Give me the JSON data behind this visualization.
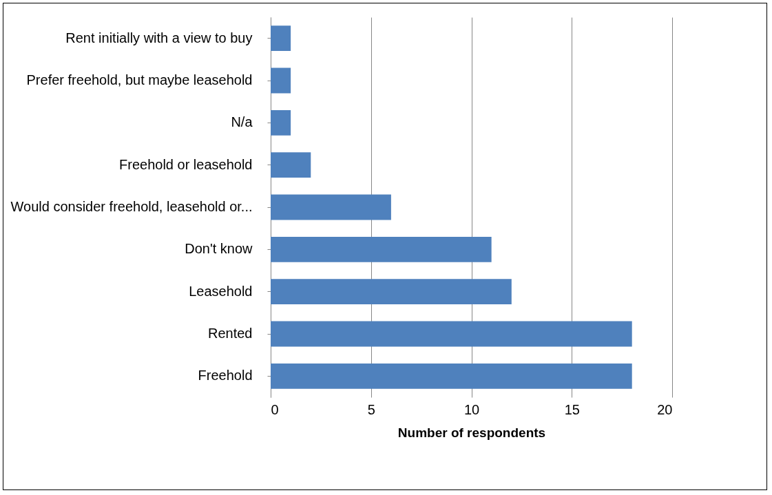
{
  "chart_data": {
    "type": "bar",
    "orientation": "horizontal",
    "categories": [
      "Rent initially with a view to buy",
      "Prefer freehold, but maybe leasehold",
      "N/a",
      "Freehold or leasehold",
      "Would consider freehold, leasehold or...",
      "Don't know",
      "Leasehold",
      "Rented",
      "Freehold"
    ],
    "values": [
      1,
      1,
      1,
      2,
      6,
      11,
      12,
      18,
      18
    ],
    "color": "#4f81bd",
    "xlabel": "Number of respondents",
    "xlim": [
      0,
      20
    ],
    "xticks": [
      0,
      5,
      10,
      15,
      20
    ],
    "grid": "x"
  }
}
